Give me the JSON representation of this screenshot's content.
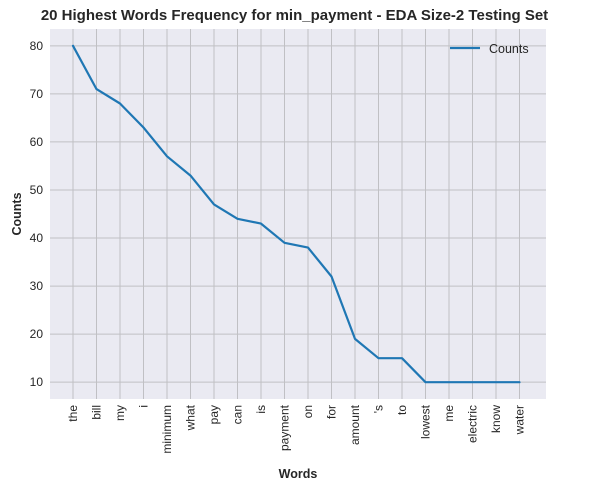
{
  "chart_data": {
    "type": "line",
    "title": "20 Highest Words Frequency for min_payment - EDA Size-2 Testing Set",
    "xlabel": "Words",
    "ylabel": "Counts",
    "categories": [
      "the",
      "bill",
      "my",
      "i",
      "minimum",
      "what",
      "pay",
      "can",
      "is",
      "payment",
      "on",
      "for",
      "amount",
      "'s",
      "to",
      "lowest",
      "me",
      "electric",
      "know",
      "water"
    ],
    "series": [
      {
        "name": "Counts",
        "values": [
          80,
          71,
          68,
          63,
          57,
          53,
          47,
          44,
          43,
          39,
          38,
          32,
          19,
          15,
          15,
          10,
          10,
          10,
          10,
          10
        ]
      }
    ],
    "yticks": [
      10,
      20,
      30,
      40,
      50,
      60,
      70,
      80
    ],
    "ylim": [
      6.5,
      83.5
    ],
    "grid": true,
    "legend": "top-right"
  },
  "colors": {
    "background": "#eaeaf2",
    "grid": "#c0c0c4",
    "line": "#1f77b4"
  }
}
